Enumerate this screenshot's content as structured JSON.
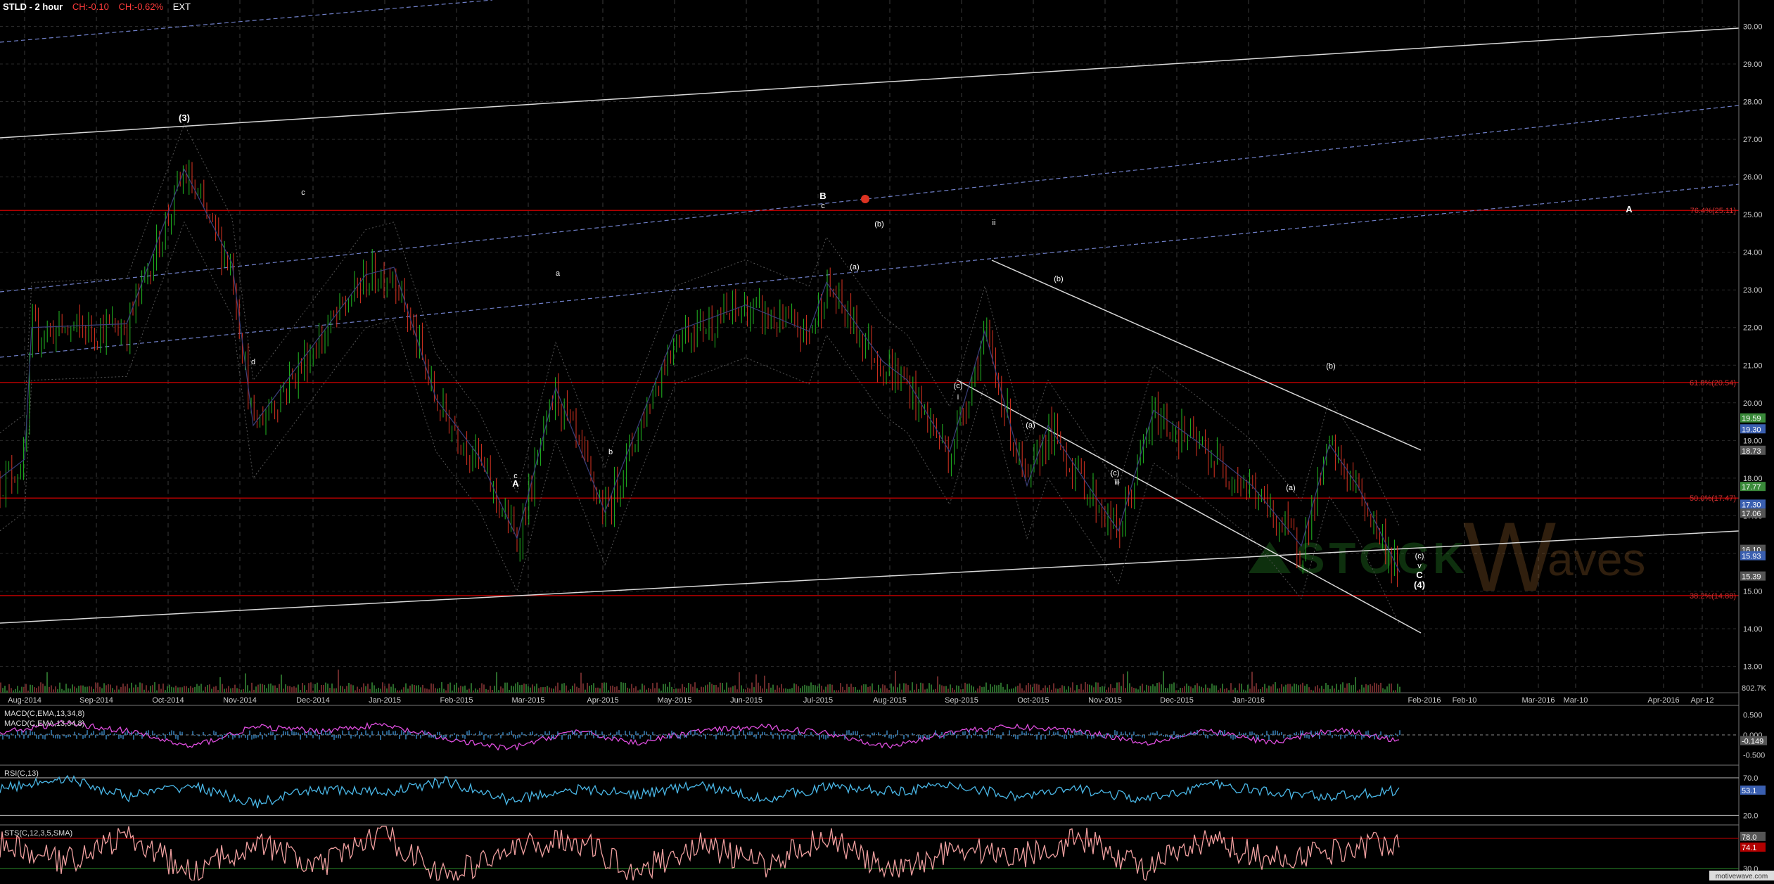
{
  "header": {
    "ticker": "STLD - 2 hour",
    "change": "CH:-0.10",
    "change_pct": "CH:-0.62%",
    "session": "EXT"
  },
  "watermark": {
    "left": "STOCK",
    "right": "aves",
    "initial": "W"
  },
  "footer": {
    "credit": "motivewave.com"
  },
  "colors": {
    "background": "#000000",
    "grid": "#2a2a2a",
    "fib": "#b30000",
    "channel": "#cfcfcf",
    "dashed": "#6f7fc8",
    "up": "#22bb22",
    "down": "#dd3322",
    "macd": "#e04ee0",
    "rsi": "#4ab8e8",
    "stoch": "#f0a0a0"
  },
  "chart_data": [
    {
      "type": "line",
      "panel": "price",
      "ylim": [
        12.3,
        30.7
      ],
      "yticks": [
        "30.00",
        "29.00",
        "28.00",
        "27.00",
        "26.00",
        "25.00",
        "24.00",
        "23.00",
        "22.00",
        "21.00",
        "20.00",
        "19.00",
        "18.00",
        "17.00",
        "16.00",
        "15.00",
        "14.00",
        "13.00"
      ],
      "xlabels": [
        "Aug-2014",
        "Sep-2014",
        "Oct-2014",
        "Nov-2014",
        "Dec-2014",
        "Jan-2015",
        "Feb-2015",
        "Mar-2015",
        "Apr-2015",
        "May-2015",
        "Jun-2015",
        "Jul-2015",
        "Aug-2015",
        "Sep-2015",
        "Oct-2015",
        "Nov-2015",
        "Dec-2015",
        "Jan-2016",
        "Feb-2016",
        "Feb-10",
        "Mar-2016",
        "Mar-10",
        "Apr-2016",
        "Apr-12"
      ],
      "fib_levels": [
        {
          "label": "76.4%(25.11)",
          "value": 25.11
        },
        {
          "label": "61.8%(20.54)",
          "value": 20.54
        },
        {
          "label": "50.0%(17.47)",
          "value": 17.47
        },
        {
          "label": "38.2%(14.88)",
          "value": 14.88
        }
      ],
      "price_badges": [
        {
          "text": "19.59",
          "value": 19.59,
          "color": "#3a8a3a"
        },
        {
          "text": "19.30",
          "value": 19.3,
          "color": "#3a5fb0"
        },
        {
          "text": "18.73",
          "value": 18.73,
          "color": "#555555"
        },
        {
          "text": "17.77",
          "value": 17.77,
          "color": "#3a8a3a"
        },
        {
          "text": "17.30",
          "value": 17.3,
          "color": "#3a5fb0"
        },
        {
          "text": "17.06",
          "value": 17.06,
          "color": "#555555"
        },
        {
          "text": "16.10",
          "value": 16.1,
          "color": "#555555"
        },
        {
          "text": "15.93",
          "value": 15.93,
          "color": "#3a5fb0"
        },
        {
          "text": "15.39",
          "value": 15.39,
          "color": "#555555"
        }
      ],
      "volume_label": "802.7K",
      "series": [
        {
          "name": "",
          "x": [
            "Jul-2014",
            "Aug-2014",
            "Aug-2014",
            "Sep-2014",
            "Sep-2014",
            "Oct-2014",
            "Oct-2014",
            "Nov-2014",
            "Dec-2014",
            "Dec-2014",
            "Jan-2015",
            "Jan-2015",
            "Feb-2015",
            "Feb-2015",
            "Mar-2015",
            "Mar-2015",
            "Apr-2015",
            "May-2015",
            "Jun-2015",
            "Jun-2015",
            "Jul-2015",
            "Jul-2015",
            "Aug-2015",
            "Aug-2015",
            "Sep-2015",
            "Sep-2015",
            "Oct-2015",
            "Nov-2015",
            "Nov-2015",
            "Dec-2015",
            "Dec-2015",
            "Jan-2016",
            "Jan-2016",
            "Jan-2016"
          ],
          "values": [
            17.9,
            18.4,
            21.9,
            22.0,
            24.0,
            26.1,
            23.6,
            19.3,
            23.3,
            23.5,
            20.0,
            18.5,
            16.3,
            20.3,
            17.0,
            18.0,
            21.8,
            22.5,
            21.8,
            23.1,
            21.0,
            20.5,
            18.6,
            21.8,
            17.7,
            19.3,
            16.5,
            19.7,
            18.9,
            17.7,
            16.1,
            18.8,
            17.7,
            15.4
          ]
        }
      ],
      "wave_labels": [
        "(3)",
        "c",
        "d",
        "a",
        "c",
        "A",
        "b",
        "B",
        "c",
        "(b)",
        "(a)",
        "ii",
        "(c)",
        "i",
        "(b)",
        "(a)",
        "iii",
        "(c)",
        "(b)",
        "(a)",
        "(c)",
        "v",
        "C",
        "(4)",
        "A"
      ]
    },
    {
      "type": "line",
      "panel": "macd",
      "title_lines": [
        "MACD(C,EMA,13,34,8)",
        "MACD(C,EMA,13,34,8)"
      ],
      "yticks": [
        "0.500",
        "0.000",
        "-0.500"
      ],
      "badge": "-0.149",
      "series": [
        {
          "name": "MACD",
          "values": [
            0.05,
            0.3,
            0.1,
            -0.3,
            0.2,
            0.1,
            0.25,
            -0.1,
            -0.35,
            0.1,
            -0.2,
            0.1,
            0.2,
            0.05,
            -0.3,
            0.1,
            0.2,
            0.1,
            -0.2,
            0.1,
            -0.2,
            0.15,
            -0.15
          ]
        }
      ]
    },
    {
      "type": "line",
      "panel": "rsi",
      "title": "RSI(C,13)",
      "yticks": [
        "70.0",
        "20.0"
      ],
      "badge": "53.1",
      "series": [
        {
          "name": "RSI",
          "values": [
            55,
            70,
            45,
            60,
            35,
            55,
            50,
            65,
            40,
            55,
            48,
            60,
            42,
            58,
            52,
            60,
            45,
            55,
            40,
            62,
            50,
            45,
            53
          ]
        }
      ]
    },
    {
      "type": "line",
      "panel": "stoch",
      "title": "STS(C,12,3,5,SMA)",
      "yticks": [
        "80.0",
        "30.0"
      ],
      "badges": [
        "74.1",
        "78.0"
      ],
      "series": [
        {
          "name": "STS",
          "values": [
            70,
            40,
            85,
            20,
            75,
            30,
            90,
            15,
            60,
            80,
            25,
            70,
            35,
            85,
            20,
            65,
            50,
            80,
            30,
            75,
            45,
            60,
            78
          ]
        }
      ]
    }
  ]
}
